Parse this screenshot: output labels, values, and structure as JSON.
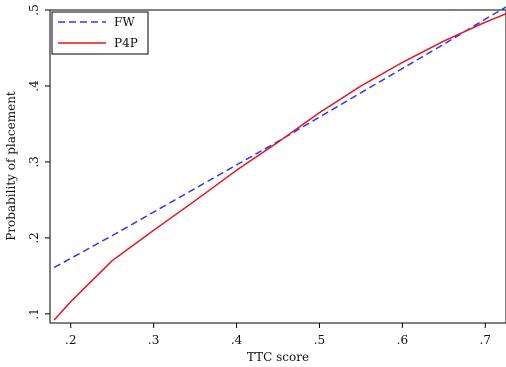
{
  "chart_data": {
    "type": "line",
    "title": "",
    "xlabel": "TTC score",
    "ylabel": "Probability of placement",
    "xlim": [
      0.175,
      0.725
    ],
    "ylim": [
      0.088,
      0.5
    ],
    "x_ticks": [
      0.2,
      0.3,
      0.4,
      0.5,
      0.6,
      0.7
    ],
    "x_tick_labels": [
      ".2",
      ".3",
      ".4",
      ".5",
      ".6",
      ".7"
    ],
    "y_ticks": [
      0.1,
      0.2,
      0.3,
      0.4,
      0.5
    ],
    "y_tick_labels": [
      ".1",
      ".2",
      ".3",
      ".4",
      ".5"
    ],
    "grid": false,
    "legend_position": "top-left",
    "series": [
      {
        "name": "FW",
        "color": "#3333ff",
        "dash": "dashed",
        "x": [
          0.18,
          0.25,
          0.3,
          0.35,
          0.4,
          0.45,
          0.5,
          0.55,
          0.6,
          0.65,
          0.7,
          0.725
        ],
        "y": [
          0.161,
          0.203,
          0.234,
          0.265,
          0.296,
          0.327,
          0.359,
          0.391,
          0.423,
          0.455,
          0.488,
          0.504
        ]
      },
      {
        "name": "P4P",
        "color": "#e8141c",
        "dash": "solid",
        "x": [
          0.18,
          0.2,
          0.25,
          0.3,
          0.35,
          0.4,
          0.45,
          0.5,
          0.55,
          0.6,
          0.65,
          0.7,
          0.725
        ],
        "y": [
          0.092,
          0.116,
          0.17,
          0.21,
          0.249,
          0.289,
          0.326,
          0.365,
          0.4,
          0.431,
          0.459,
          0.484,
          0.495
        ]
      }
    ]
  }
}
